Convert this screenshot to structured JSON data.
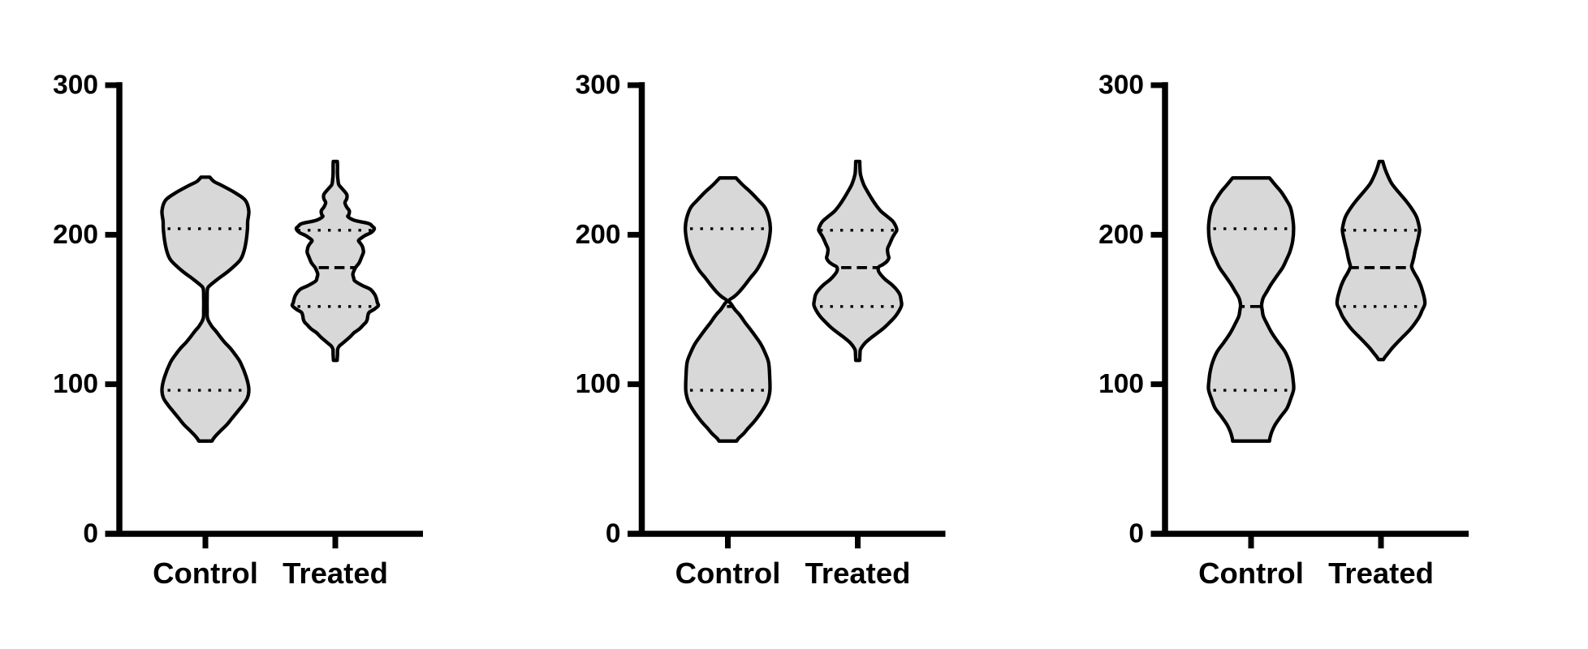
{
  "style": {
    "violin_fill": "#D8D8D8",
    "line_color": "#000000",
    "background": "#FFFFFF"
  },
  "chart_data": [
    {
      "type": "violin",
      "panel_index": 1,
      "smoothing_appearance": "low",
      "categories": [
        "Control",
        "Treated"
      ],
      "ylim": [
        0,
        300
      ],
      "yticks": [
        0,
        100,
        200,
        300
      ],
      "grid": false,
      "series": [
        {
          "name": "Control",
          "stats": {
            "min": 62,
            "q1": 96,
            "median": 152,
            "q3": 204,
            "max": 238
          },
          "quartile_line_style": "dotted",
          "median_line_style": "dashed",
          "profile": [
            [
              238.5,
              0.1
            ],
            [
              235.5,
              0.2
            ],
            [
              233,
              0.37
            ],
            [
              228,
              0.68
            ],
            [
              223,
              0.91
            ],
            [
              216,
              0.99
            ],
            [
              209,
              0.965
            ],
            [
              204,
              0.96
            ],
            [
              196,
              0.93
            ],
            [
              189,
              0.88
            ],
            [
              183,
              0.79
            ],
            [
              176,
              0.54
            ],
            [
              170.5,
              0.29
            ],
            [
              166.5,
              0.12
            ],
            [
              164,
              0.05
            ],
            [
              158,
              0.04
            ],
            [
              150,
              0.04
            ],
            [
              144,
              0.05
            ],
            [
              139,
              0.14
            ],
            [
              135.5,
              0.24
            ],
            [
              132,
              0.33
            ],
            [
              128,
              0.44
            ],
            [
              124,
              0.57
            ],
            [
              119,
              0.7
            ],
            [
              114.5,
              0.8
            ],
            [
              105,
              0.93
            ],
            [
              97,
              0.99
            ],
            [
              91,
              0.96
            ],
            [
              86,
              0.85
            ],
            [
              82,
              0.74
            ],
            [
              77,
              0.6
            ],
            [
              73,
              0.49
            ],
            [
              69,
              0.35
            ],
            [
              66,
              0.25
            ],
            [
              63.5,
              0.18
            ],
            [
              62,
              0.15
            ]
          ]
        },
        {
          "name": "Treated",
          "stats": {
            "min": 116,
            "q1": 152,
            "median": 178,
            "q3": 203,
            "max": 249
          },
          "quartile_line_style": "dotted",
          "median_line_style": "dashed",
          "profile": [
            [
              249,
              0.046
            ],
            [
              246,
              0.05
            ],
            [
              241,
              0.05
            ],
            [
              237,
              0.06
            ],
            [
              233.5,
              0.08
            ],
            [
              231,
              0.15
            ],
            [
              227,
              0.26
            ],
            [
              224,
              0.26
            ],
            [
              221.5,
              0.22
            ],
            [
              218.5,
              0.26
            ],
            [
              216,
              0.32
            ],
            [
              213.5,
              0.31
            ],
            [
              212,
              0.29
            ],
            [
              209.5,
              0.45
            ],
            [
              207.5,
              0.76
            ],
            [
              205.5,
              0.85
            ],
            [
              204,
              0.89
            ],
            [
              201.5,
              0.82
            ],
            [
              199.5,
              0.68
            ],
            [
              197.5,
              0.58
            ],
            [
              196,
              0.53
            ],
            [
              194,
              0.58
            ],
            [
              192,
              0.62
            ],
            [
              189.5,
              0.64
            ],
            [
              188,
              0.64
            ],
            [
              185,
              0.6
            ],
            [
              181.5,
              0.55
            ],
            [
              179.5,
              0.5
            ],
            [
              178,
              0.46
            ],
            [
              175.5,
              0.42
            ],
            [
              173.5,
              0.4
            ],
            [
              171,
              0.42
            ],
            [
              169,
              0.45
            ],
            [
              166,
              0.62
            ],
            [
              163.5,
              0.8
            ],
            [
              160,
              0.9
            ],
            [
              157,
              0.94
            ],
            [
              154.5,
              0.96
            ],
            [
              152.5,
              0.98
            ],
            [
              150,
              0.88
            ],
            [
              148,
              0.77
            ],
            [
              145.5,
              0.74
            ],
            [
              143.5,
              0.73
            ],
            [
              141.5,
              0.7
            ],
            [
              140,
              0.65
            ],
            [
              137,
              0.55
            ],
            [
              134.5,
              0.43
            ],
            [
              131.5,
              0.33
            ],
            [
              129,
              0.23
            ],
            [
              127,
              0.15
            ],
            [
              125.5,
              0.09
            ],
            [
              123.5,
              0.055
            ],
            [
              120,
              0.05
            ],
            [
              117.5,
              0.045
            ],
            [
              116,
              0.042
            ]
          ]
        }
      ]
    },
    {
      "type": "violin",
      "panel_index": 2,
      "smoothing_appearance": "medium",
      "categories": [
        "Control",
        "Treated"
      ],
      "ylim": [
        0,
        300
      ],
      "yticks": [
        0,
        100,
        200,
        300
      ],
      "grid": false,
      "series": [
        {
          "name": "Control",
          "stats": {
            "min": 62,
            "q1": 96,
            "median": 152,
            "q3": 204,
            "max": 238
          },
          "quartile_line_style": "dotted",
          "median_line_style": "dashed",
          "profile": [
            [
              238,
              0.185
            ],
            [
              233,
              0.35
            ],
            [
              228.5,
              0.52
            ],
            [
              223,
              0.7
            ],
            [
              218,
              0.85
            ],
            [
              211,
              0.94
            ],
            [
              204.5,
              0.97
            ],
            [
              198,
              0.95
            ],
            [
              192.5,
              0.91
            ],
            [
              187,
              0.85
            ],
            [
              181.5,
              0.76
            ],
            [
              176,
              0.65
            ],
            [
              171,
              0.51
            ],
            [
              166,
              0.38
            ],
            [
              161.5,
              0.25
            ],
            [
              158.5,
              0.14
            ],
            [
              156,
              0.025
            ],
            [
              153.5,
              0.08
            ],
            [
              150,
              0.16
            ],
            [
              146,
              0.28
            ],
            [
              141,
              0.4
            ],
            [
              138,
              0.48
            ],
            [
              132.5,
              0.62
            ],
            [
              127,
              0.75
            ],
            [
              121,
              0.85
            ],
            [
              114.5,
              0.93
            ],
            [
              105,
              0.955
            ],
            [
              96,
              0.96
            ],
            [
              90,
              0.92
            ],
            [
              86,
              0.86
            ],
            [
              80,
              0.73
            ],
            [
              75,
              0.6
            ],
            [
              70.5,
              0.46
            ],
            [
              67,
              0.36
            ],
            [
              64,
              0.25
            ],
            [
              62,
              0.2
            ]
          ]
        },
        {
          "name": "Treated",
          "stats": {
            "min": 116,
            "q1": 152,
            "median": 178,
            "q3": 203,
            "max": 249
          },
          "quartile_line_style": "dotted",
          "median_line_style": "dashed",
          "profile": [
            [
              249,
              0.046
            ],
            [
              245,
              0.05
            ],
            [
              240,
              0.065
            ],
            [
              234,
              0.13
            ],
            [
              229.5,
              0.21
            ],
            [
              225,
              0.3
            ],
            [
              220.5,
              0.4
            ],
            [
              216,
              0.52
            ],
            [
              212.5,
              0.66
            ],
            [
              209,
              0.8
            ],
            [
              205.5,
              0.87
            ],
            [
              203,
              0.89
            ],
            [
              200.5,
              0.84
            ],
            [
              198,
              0.79
            ],
            [
              194,
              0.73
            ],
            [
              190.5,
              0.68
            ],
            [
              187,
              0.69
            ],
            [
              184.5,
              0.71
            ],
            [
              182,
              0.66
            ],
            [
              180,
              0.57
            ],
            [
              178.5,
              0.48
            ],
            [
              176,
              0.47
            ],
            [
              173.5,
              0.52
            ],
            [
              170,
              0.63
            ],
            [
              167,
              0.76
            ],
            [
              163.5,
              0.88
            ],
            [
              160,
              0.96
            ],
            [
              156,
              0.99
            ],
            [
              153,
              1.0
            ],
            [
              149.5,
              0.95
            ],
            [
              145.5,
              0.86
            ],
            [
              142,
              0.75
            ],
            [
              138,
              0.61
            ],
            [
              134.5,
              0.46
            ],
            [
              131,
              0.3
            ],
            [
              128,
              0.18
            ],
            [
              125.5,
              0.11
            ],
            [
              123,
              0.06
            ],
            [
              119.5,
              0.05
            ],
            [
              116,
              0.045
            ]
          ]
        }
      ]
    },
    {
      "type": "violin",
      "panel_index": 3,
      "smoothing_appearance": "high",
      "categories": [
        "Control",
        "Treated"
      ],
      "ylim": [
        0,
        300
      ],
      "yticks": [
        0,
        100,
        200,
        300
      ],
      "grid": false,
      "series": [
        {
          "name": "Control",
          "stats": {
            "min": 62,
            "q1": 96,
            "median": 152,
            "q3": 204,
            "max": 238
          },
          "quartile_line_style": "dotted",
          "median_line_style": "dashed",
          "profile": [
            [
              238,
              0.42
            ],
            [
              233,
              0.56
            ],
            [
              228.5,
              0.69
            ],
            [
              223,
              0.81
            ],
            [
              218,
              0.9
            ],
            [
              211,
              0.95
            ],
            [
              204,
              0.97
            ],
            [
              196,
              0.95
            ],
            [
              189,
              0.89
            ],
            [
              183.5,
              0.81
            ],
            [
              178,
              0.72
            ],
            [
              172.5,
              0.59
            ],
            [
              167,
              0.46
            ],
            [
              162,
              0.36
            ],
            [
              158,
              0.28
            ],
            [
              155,
              0.25
            ],
            [
              152.5,
              0.24
            ],
            [
              149.5,
              0.255
            ],
            [
              145.5,
              0.28
            ],
            [
              140,
              0.37
            ],
            [
              134.5,
              0.47
            ],
            [
              128,
              0.62
            ],
            [
              122,
              0.77
            ],
            [
              115.5,
              0.87
            ],
            [
              109,
              0.93
            ],
            [
              102.5,
              0.96
            ],
            [
              96.5,
              0.97
            ],
            [
              90,
              0.9
            ],
            [
              84,
              0.82
            ],
            [
              78.5,
              0.68
            ],
            [
              73,
              0.55
            ],
            [
              68,
              0.47
            ],
            [
              64,
              0.43
            ],
            [
              62,
              0.42
            ]
          ]
        },
        {
          "name": "Treated",
          "stats": {
            "min": 116,
            "q1": 152,
            "median": 178,
            "q3": 203,
            "max": 249
          },
          "quartile_line_style": "dotted",
          "median_line_style": "dashed",
          "profile": [
            [
              249,
              0.04
            ],
            [
              246,
              0.07
            ],
            [
              243,
              0.105
            ],
            [
              238.5,
              0.17
            ],
            [
              234,
              0.25
            ],
            [
              228.5,
              0.4
            ],
            [
              223,
              0.56
            ],
            [
              217.5,
              0.7
            ],
            [
              212,
              0.81
            ],
            [
              207,
              0.86
            ],
            [
              203,
              0.88
            ],
            [
              198.5,
              0.855
            ],
            [
              194,
              0.82
            ],
            [
              189.5,
              0.78
            ],
            [
              185,
              0.75
            ],
            [
              181.5,
              0.72
            ],
            [
              178.5,
              0.7
            ],
            [
              174.5,
              0.76
            ],
            [
              171,
              0.83
            ],
            [
              166.5,
              0.9
            ],
            [
              162,
              0.95
            ],
            [
              157.5,
              0.99
            ],
            [
              153.5,
              1.0
            ],
            [
              149.5,
              0.94
            ],
            [
              145.5,
              0.88
            ],
            [
              141,
              0.78
            ],
            [
              136.5,
              0.66
            ],
            [
              132,
              0.51
            ],
            [
              127.5,
              0.36
            ],
            [
              124,
              0.25
            ],
            [
              121,
              0.17
            ],
            [
              118.5,
              0.1
            ],
            [
              116.5,
              0.055
            ]
          ]
        }
      ]
    }
  ]
}
